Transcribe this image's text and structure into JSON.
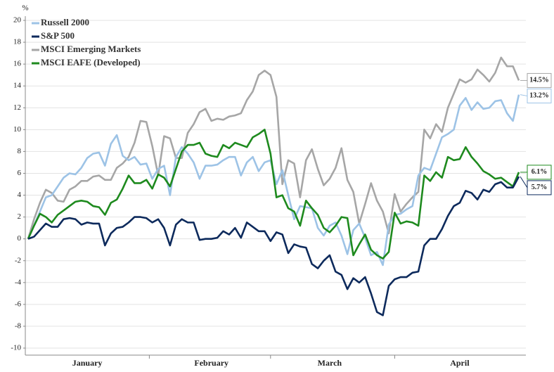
{
  "chart_data": {
    "type": "line",
    "y_label": "%",
    "categories": [
      null,
      null,
      null,
      null,
      null,
      null,
      null,
      null,
      null,
      null,
      "January",
      null,
      null,
      null,
      null,
      null,
      null,
      null,
      null,
      null,
      null,
      null,
      null,
      null,
      null,
      null,
      null,
      null,
      null,
      null,
      null,
      "February",
      null,
      null,
      null,
      null,
      null,
      null,
      null,
      null,
      null,
      null,
      null,
      null,
      null,
      null,
      null,
      null,
      null,
      null,
      null,
      "March",
      null,
      null,
      null,
      null,
      null,
      null,
      null,
      null,
      null,
      null,
      null,
      null,
      null,
      null,
      null,
      null,
      null,
      null,
      null,
      null,
      null,
      "April",
      null,
      null,
      null,
      null,
      null,
      null,
      null,
      null,
      null,
      null
    ],
    "ylim": [
      -10,
      20
    ],
    "yticks": [
      -10,
      -8,
      -6,
      -4,
      -2,
      0,
      2,
      4,
      6,
      8,
      10,
      12,
      14,
      16,
      18,
      20
    ],
    "grid": true,
    "legend": "upper left",
    "series": [
      {
        "name": "Russell 2000",
        "color": "#9dc3e6",
        "end_label": "13.2%",
        "values": [
          0,
          1.2,
          2.5,
          3.8,
          4.0,
          4.8,
          5.6,
          6.0,
          5.9,
          6.5,
          7.4,
          7.8,
          7.9,
          6.7,
          8.7,
          9.5,
          7.6,
          7.2,
          7.5,
          6.8,
          6.9,
          5.5,
          6.4,
          6.7,
          4.0,
          7.5,
          8.4,
          7.8,
          7.0,
          5.5,
          6.7,
          6.7,
          6.8,
          7.2,
          7.5,
          7.5,
          5.8,
          7.0,
          7.5,
          6.2,
          7.0,
          7.2,
          5.0,
          6.3,
          4.0,
          1.8,
          3.0,
          2.9,
          2.8,
          1.0,
          0.3,
          1.2,
          1.5,
          0.3,
          -1.4,
          0.8,
          1.4,
          0.1,
          -1.5,
          -1.2,
          -2.4,
          1.3,
          2.2,
          2.3,
          2.7,
          3.0,
          5.8,
          6.5,
          6.3,
          7.8,
          9.3,
          9.6,
          10.0,
          12.2,
          12.9,
          11.8,
          12.5,
          11.9,
          12.0,
          12.6,
          12.7,
          11.5,
          10.8,
          13.2
        ]
      },
      {
        "name": "S&P 500",
        "color": "#0d2a5c",
        "end_label": "5.7%",
        "values": [
          0,
          0.2,
          0.8,
          1.4,
          1.1,
          1.1,
          1.8,
          1.9,
          1.8,
          1.3,
          1.5,
          1.4,
          1.4,
          -0.6,
          0.5,
          1.0,
          1.1,
          1.5,
          2.0,
          2.0,
          1.9,
          1.5,
          1.8,
          1.0,
          -0.6,
          1.3,
          1.8,
          1.5,
          1.5,
          -0.1,
          0.0,
          0.0,
          0.1,
          0.7,
          0.4,
          1.0,
          0.1,
          1.5,
          1.1,
          0.7,
          0.7,
          -0.2,
          0.6,
          0.4,
          -1.3,
          -0.5,
          -0.7,
          -0.8,
          -2.3,
          -2.7,
          -2.0,
          -1.5,
          -3.0,
          -3.3,
          -4.6,
          -3.6,
          -4.0,
          -3.5,
          -5.0,
          -6.7,
          -7.0,
          -4.3,
          -3.7,
          -3.5,
          -3.5,
          -3.1,
          -3.0,
          -0.6,
          0.0,
          0.0,
          0.9,
          2.1,
          3.0,
          3.3,
          4.4,
          4.2,
          3.6,
          4.5,
          4.3,
          5.0,
          5.2,
          4.7,
          4.7,
          5.7
        ]
      },
      {
        "name": "MSCI Emerging Markets",
        "color": "#a6a6a6",
        "end_label": "14.5%",
        "values": [
          0,
          1.8,
          3.3,
          4.5,
          4.2,
          3.5,
          3.4,
          4.5,
          4.8,
          5.3,
          5.3,
          5.7,
          5.8,
          5.4,
          5.4,
          6.5,
          6.9,
          7.5,
          8.8,
          10.8,
          10.7,
          8.5,
          5.8,
          9.4,
          9.2,
          7.4,
          7.4,
          9.7,
          10.5,
          11.6,
          11.9,
          10.8,
          11.0,
          10.9,
          11.2,
          11.3,
          11.5,
          12.7,
          13.5,
          15.0,
          15.4,
          15.0,
          13.0,
          5.0,
          7.2,
          6.9,
          3.8,
          7.2,
          8.2,
          6.4,
          4.9,
          5.5,
          6.5,
          8.3,
          5.4,
          4.3,
          1.4,
          3.2,
          5.1,
          3.5,
          2.5,
          0.5,
          4.1,
          2.5,
          3.2,
          3.8,
          4.3,
          10.0,
          9.2,
          10.5,
          9.8,
          12.0,
          13.3,
          14.6,
          14.3,
          14.6,
          15.5,
          15.0,
          14.4,
          15.2,
          16.6,
          15.8,
          15.8,
          14.5
        ]
      },
      {
        "name": "MSCI EAFE (Developed)",
        "color": "#1e8a1e",
        "end_label": "6.1%",
        "values": [
          0,
          1.2,
          2.3,
          2.0,
          1.5,
          2.2,
          2.6,
          3.0,
          3.4,
          3.5,
          3.4,
          3.0,
          2.9,
          2.2,
          3.3,
          3.6,
          4.6,
          5.8,
          5.1,
          5.1,
          5.4,
          4.6,
          5.9,
          5.6,
          4.8,
          6.4,
          8.0,
          8.6,
          8.6,
          8.8,
          7.8,
          7.6,
          7.5,
          8.6,
          8.3,
          8.8,
          8.6,
          8.4,
          9.3,
          9.6,
          10.0,
          7.8,
          3.8,
          4.0,
          2.8,
          2.5,
          1.2,
          3.5,
          2.8,
          2.2,
          1.0,
          0.6,
          1.2,
          2.0,
          1.9,
          -1.5,
          -0.5,
          0.4,
          -1.0,
          -1.5,
          -1.8,
          -1.2,
          2.4,
          1.4,
          1.6,
          1.5,
          1.2,
          5.8,
          5.3,
          6.1,
          5.6,
          7.5,
          7.2,
          7.3,
          8.4,
          7.5,
          6.9,
          6.2,
          5.9,
          5.5,
          5.6,
          5.2,
          4.8,
          6.1
        ]
      }
    ]
  }
}
